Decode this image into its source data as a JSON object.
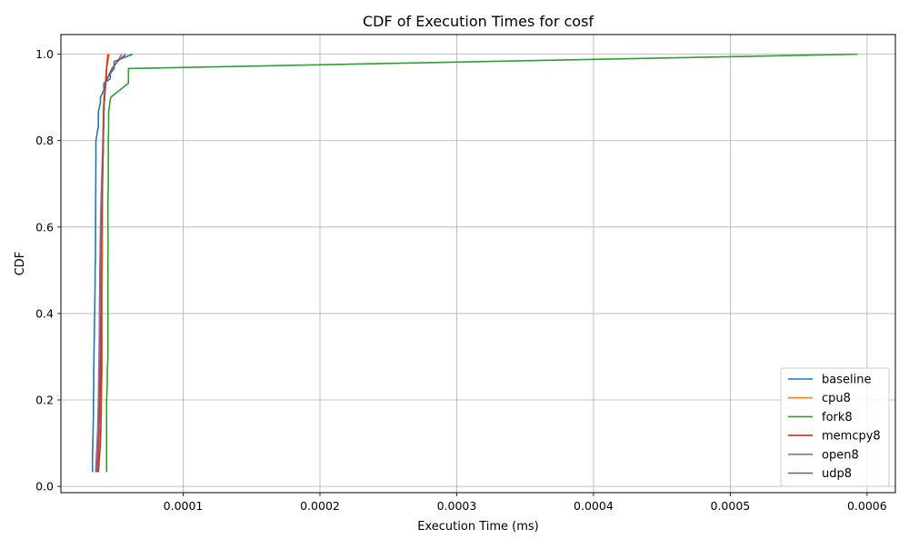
{
  "chart_data": {
    "type": "line",
    "title": "CDF of Execution Times for cosf",
    "xlabel": "Execution Time (ms)",
    "ylabel": "CDF",
    "xlim": [
      1.06e-05,
      0.0006207
    ],
    "ylim": [
      -0.0145,
      1.0455
    ],
    "xticks": [
      0.0001,
      0.0002,
      0.0003,
      0.0004,
      0.0005,
      0.0006
    ],
    "xtick_labels": [
      "0.0001",
      "0.0002",
      "0.0003",
      "0.0004",
      "0.0005",
      "0.0006"
    ],
    "yticks": [
      0.0,
      0.2,
      0.4,
      0.6,
      0.8,
      1.0
    ],
    "ytick_labels": [
      "0.0",
      "0.2",
      "0.4",
      "0.6",
      "0.8",
      "1.0"
    ],
    "grid": true,
    "legend_position": "lower-right",
    "series": [
      {
        "name": "baseline",
        "color": "#1f77b4",
        "x": [
          3.37e-05,
          3.37e-05,
          3.44e-05,
          3.44e-05,
          3.46e-05,
          3.46e-05,
          3.56e-05,
          3.56e-05,
          3.59e-05,
          3.59e-05,
          3.62e-05,
          3.62e-05,
          3.8e-05,
          3.8e-05,
          3.95e-05,
          3.95e-05,
          4.2e-05,
          4.2e-05,
          4.67e-05,
          4.67e-05,
          4.95e-05,
          4.95e-05,
          6.3e-05
        ],
        "y": [
          0.033,
          0.067,
          0.167,
          0.2,
          0.233,
          0.267,
          0.467,
          0.5,
          0.533,
          0.567,
          0.767,
          0.8,
          0.833,
          0.867,
          0.887,
          0.9,
          0.917,
          0.933,
          0.943,
          0.955,
          0.967,
          0.983,
          1.0
        ]
      },
      {
        "name": "cpu8",
        "color": "#ff7f0e",
        "x": [
          3.72e-05,
          3.9e-05,
          3.95e-05,
          4.02e-05,
          4.05e-05,
          4.07e-05,
          4.07e-05,
          4.1e-05,
          4.1e-05,
          4.13e-05,
          4.13e-05,
          4.16e-05,
          4.2e-05,
          4.3e-05,
          4.4e-05,
          4.5e-05,
          4.6e-05
        ],
        "y": [
          0.033,
          0.1,
          0.133,
          0.167,
          0.233,
          0.267,
          0.467,
          0.533,
          0.7,
          0.733,
          0.8,
          0.867,
          0.9,
          0.933,
          0.967,
          0.985,
          1.0
        ]
      },
      {
        "name": "fork8",
        "color": "#2ca02c",
        "x": [
          4.4e-05,
          4.4e-05,
          4.45e-05,
          4.45e-05,
          4.5e-05,
          4.5e-05,
          4.53e-05,
          4.53e-05,
          4.55e-05,
          4.55e-05,
          4.7e-05,
          6e-05,
          6e-05,
          6.4e-05,
          0.000593
        ],
        "y": [
          0.033,
          0.2,
          0.233,
          0.267,
          0.3,
          0.667,
          0.7,
          0.8,
          0.833,
          0.867,
          0.9,
          0.933,
          0.967,
          0.967,
          1.0
        ]
      },
      {
        "name": "memcpy8",
        "color": "#d62728",
        "x": [
          3.8e-05,
          3.95e-05,
          3.98e-05,
          3.98e-05,
          4.02e-05,
          4.02e-05,
          4.07e-05,
          4.07e-05,
          4.1e-05,
          4.1e-05,
          4.15e-05,
          4.2e-05,
          4.25e-05,
          4.35e-05,
          4.4e-05,
          4.5e-05
        ],
        "y": [
          0.033,
          0.1,
          0.133,
          0.233,
          0.267,
          0.567,
          0.6,
          0.667,
          0.7,
          0.733,
          0.767,
          0.867,
          0.9,
          0.933,
          0.967,
          1.0
        ]
      },
      {
        "name": "open8",
        "color": "#9467bd",
        "x": [
          3.6e-05,
          3.75e-05,
          3.8e-05,
          3.83e-05,
          3.86e-05,
          3.88e-05,
          3.92e-05,
          3.95e-05,
          4e-05,
          4.1e-05,
          4.2e-05,
          4.3e-05,
          4.8e-05,
          5.2e-05,
          5.5e-05
        ],
        "y": [
          0.033,
          0.133,
          0.2,
          0.267,
          0.333,
          0.4,
          0.533,
          0.6,
          0.667,
          0.767,
          0.867,
          0.933,
          0.967,
          0.983,
          1.0
        ]
      },
      {
        "name": "udp8",
        "color": "#8c564b",
        "x": [
          3.7e-05,
          3.85e-05,
          3.9e-05,
          3.95e-05,
          3.98e-05,
          4e-05,
          4.05e-05,
          4.1e-05,
          4.15e-05,
          4.2e-05,
          4.25e-05,
          4.3e-05,
          4.8e-05,
          5.2e-05,
          5.8e-05
        ],
        "y": [
          0.033,
          0.133,
          0.233,
          0.3,
          0.4,
          0.5,
          0.6,
          0.7,
          0.8,
          0.867,
          0.9,
          0.933,
          0.967,
          0.983,
          1.0
        ]
      }
    ]
  }
}
